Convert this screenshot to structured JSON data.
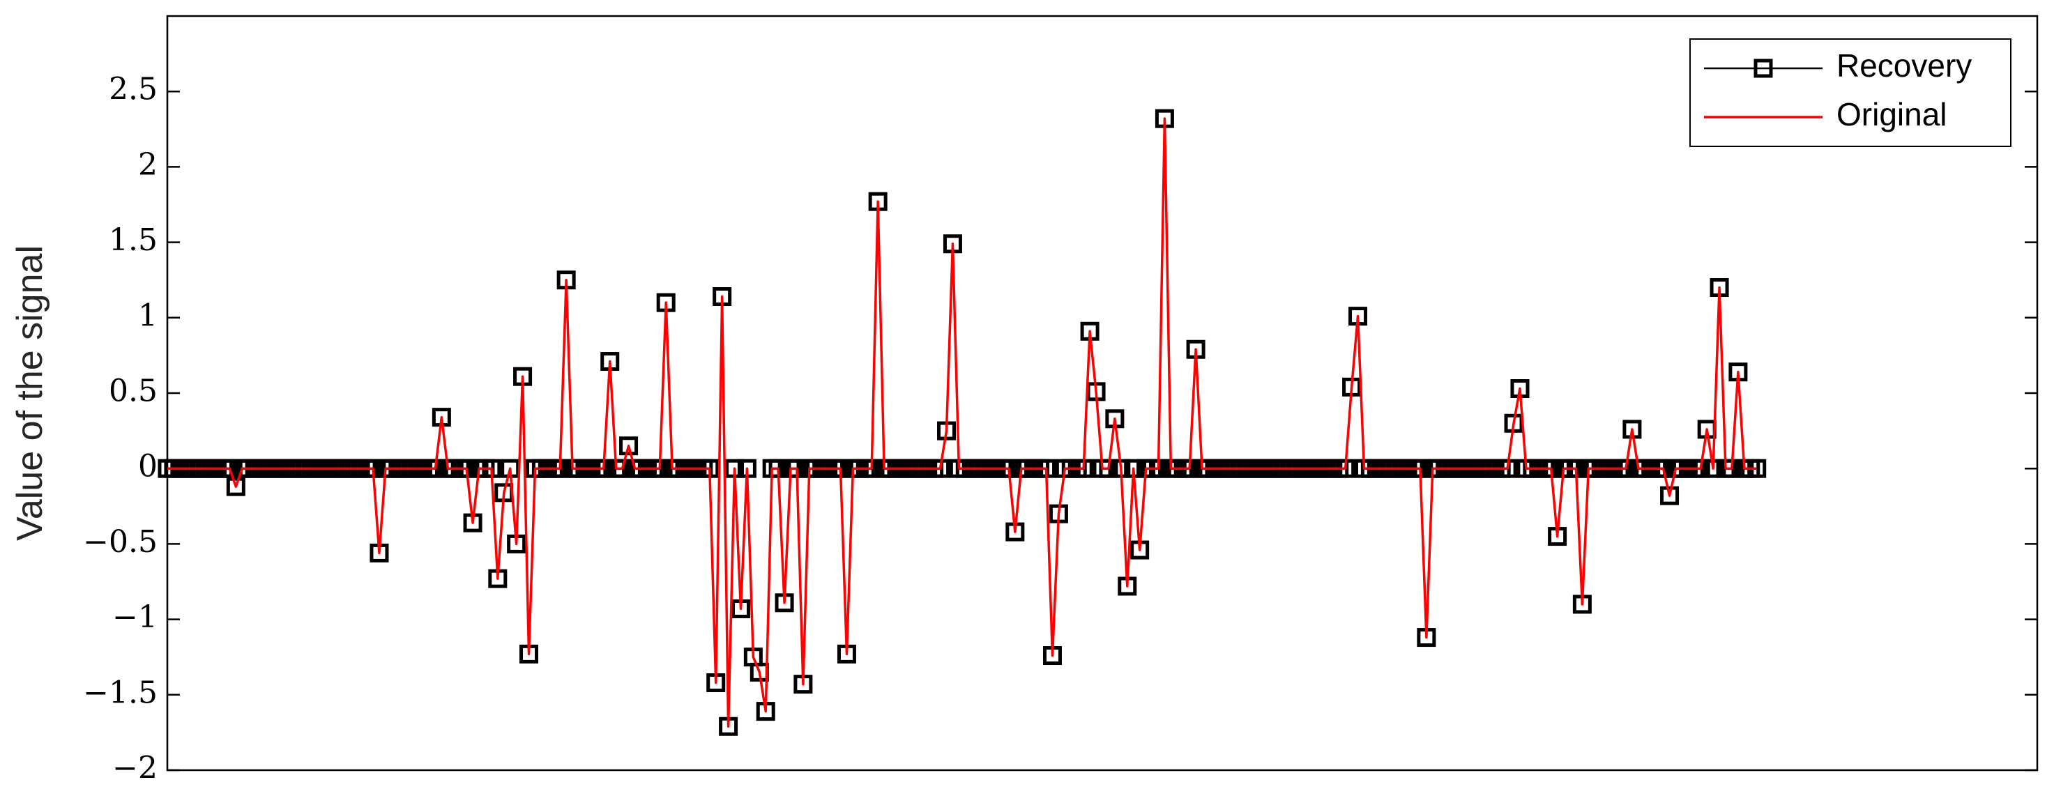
{
  "chart_data": {
    "type": "line",
    "ylabel": "Value of the signal",
    "xlim": [
      0,
      300
    ],
    "ylim": [
      -2,
      3
    ],
    "yticks": [
      {
        "value": -2,
        "label": "−2"
      },
      {
        "value": -1.5,
        "label": "−1.5"
      },
      {
        "value": -1,
        "label": "−1"
      },
      {
        "value": -0.5,
        "label": "−0.5"
      },
      0,
      0.5,
      1,
      1.5,
      2,
      2.5
    ],
    "legend": "top-right",
    "x": [
      0,
      1,
      2,
      3,
      4,
      5,
      6,
      7,
      8,
      9,
      10,
      11,
      12,
      13,
      14,
      15,
      16,
      17,
      18,
      19,
      20,
      21,
      22,
      23,
      24,
      25,
      26,
      27,
      28,
      29,
      30,
      31,
      32,
      33,
      34,
      35,
      36,
      37,
      38,
      39,
      40,
      41,
      42,
      43,
      44,
      45,
      46,
      47,
      48,
      49,
      50,
      51,
      52,
      53,
      54,
      55,
      56,
      57,
      58,
      59,
      60,
      61,
      62,
      63,
      64,
      65,
      66,
      67,
      68,
      69,
      70,
      71,
      72,
      73,
      74,
      75,
      76,
      77,
      78,
      79,
      80,
      81,
      82,
      83,
      84,
      85,
      86,
      87,
      88,
      89,
      90,
      91,
      92,
      93,
      94,
      95,
      96,
      97,
      98,
      99,
      100,
      101,
      102,
      103,
      104,
      105,
      106,
      107,
      108,
      109,
      110,
      111,
      112,
      113,
      114,
      115,
      116,
      117,
      118,
      119,
      120,
      121,
      122,
      123,
      124,
      125,
      126,
      127,
      128,
      129,
      130,
      131,
      132,
      133,
      134,
      135,
      136,
      137,
      138,
      139,
      140,
      141,
      142,
      143,
      144,
      145,
      146,
      147,
      148,
      149,
      150,
      151,
      152,
      153,
      154,
      155,
      156,
      157,
      158,
      159,
      160,
      161,
      162,
      163,
      164,
      165,
      166,
      167,
      168,
      169,
      170,
      171,
      172,
      173,
      174,
      175,
      176,
      177,
      178,
      179,
      180,
      181,
      182,
      183,
      184,
      185,
      186,
      187,
      188,
      189,
      190,
      191,
      192,
      193,
      194,
      195,
      196,
      197,
      198,
      199,
      200,
      201,
      202,
      203,
      204,
      205,
      206,
      207,
      208,
      209,
      210,
      211,
      212,
      213,
      214,
      215,
      216,
      217,
      218,
      219,
      220,
      221,
      222,
      223,
      224,
      225,
      226,
      227,
      228,
      229,
      230,
      231,
      232,
      233,
      234,
      235,
      236,
      237,
      238,
      239,
      240,
      241,
      242,
      243,
      244,
      245,
      246,
      247,
      248,
      249,
      250,
      251,
      252,
      253,
      254,
      255
    ],
    "series": [
      {
        "name": "Recovery",
        "color": "#000000",
        "marker": "square",
        "values": [
          0,
          0,
          0,
          0,
          0,
          0,
          0,
          0,
          0,
          0,
          0,
          -0.12,
          0,
          0,
          0,
          0,
          0,
          0,
          0,
          0,
          0,
          0,
          0,
          0,
          0,
          0,
          0,
          0,
          0,
          0,
          0,
          0,
          0,
          0,
          -0.56,
          0,
          0,
          0,
          0,
          0,
          0,
          0,
          0,
          0,
          0.34,
          0,
          0,
          0,
          0,
          -0.36,
          0,
          0,
          0,
          -0.73,
          -0.16,
          0,
          -0.5,
          0.61,
          -1.23,
          0,
          0,
          0,
          0,
          0,
          1.25,
          0,
          0,
          0,
          0,
          0,
          0,
          0.71,
          0,
          0,
          0.15,
          0,
          0,
          0,
          0,
          0,
          1.1,
          0,
          0,
          0,
          0,
          0,
          0,
          0,
          -1.42,
          1.14,
          -1.71,
          0,
          -0.93,
          0,
          -1.25,
          -1.35,
          -1.61,
          0,
          0,
          -0.89,
          0,
          0,
          -1.43,
          0,
          0,
          0,
          0,
          0,
          0,
          -1.23,
          0,
          0,
          0,
          0,
          1.77,
          0,
          0,
          0,
          0,
          0,
          0,
          0,
          0,
          0,
          0,
          0.25,
          1.49,
          0,
          0,
          0,
          0,
          0,
          0,
          0,
          0,
          0,
          -0.42,
          0,
          0,
          0,
          0,
          0,
          -1.24,
          -0.3,
          0,
          0,
          0,
          0,
          0.91,
          0.51,
          0,
          0,
          0.33,
          0,
          -0.78,
          0,
          -0.54,
          0,
          0,
          0,
          2.32,
          0,
          0,
          0,
          0,
          0.79,
          0,
          0,
          0,
          0,
          0,
          0,
          0,
          0,
          0,
          0,
          0,
          0,
          0,
          0,
          0,
          0,
          0,
          0,
          0,
          0,
          0,
          0,
          0,
          0,
          0.54,
          1.01,
          0,
          0,
          0,
          0,
          0,
          0,
          0,
          0,
          0,
          0,
          -1.12,
          0,
          0,
          0,
          0,
          0,
          0,
          0,
          0,
          0,
          0,
          0,
          0,
          0,
          0.3,
          0.53,
          0,
          0,
          0,
          0,
          0,
          -0.45,
          0,
          0,
          0,
          -0.9,
          0,
          0,
          0,
          0,
          0,
          0,
          0,
          0.26,
          0,
          0,
          0,
          0,
          0,
          -0.18,
          0,
          0,
          0,
          0,
          0,
          0.26,
          0,
          1.2,
          0,
          0,
          0.64,
          0,
          0,
          0
        ]
      },
      {
        "name": "Original",
        "color": "#ff0000",
        "values": [
          0,
          0,
          0,
          0,
          0,
          0,
          0,
          0,
          0,
          0,
          0,
          -0.12,
          0,
          0,
          0,
          0,
          0,
          0,
          0,
          0,
          0,
          0,
          0,
          0,
          0,
          0,
          0,
          0,
          0,
          0,
          0,
          0,
          0,
          0,
          -0.56,
          0,
          0,
          0,
          0,
          0,
          0,
          0,
          0,
          0,
          0.34,
          0,
          0,
          0,
          0,
          -0.36,
          0,
          0,
          0,
          -0.73,
          -0.16,
          0,
          -0.5,
          0.61,
          -1.23,
          0,
          0,
          0,
          0,
          0,
          1.25,
          0,
          0,
          0,
          0,
          0,
          0,
          0.71,
          0,
          0,
          0.15,
          0,
          0,
          0,
          0,
          0,
          1.1,
          0,
          0,
          0,
          0,
          0,
          0,
          0,
          -1.42,
          1.14,
          -1.71,
          0,
          -0.93,
          0,
          -1.25,
          -1.35,
          -1.61,
          0,
          0,
          -0.89,
          0,
          0,
          -1.43,
          0,
          0,
          0,
          0,
          0,
          0,
          -1.23,
          0,
          0,
          0,
          0,
          1.77,
          0,
          0,
          0,
          0,
          0,
          0,
          0,
          0,
          0,
          0,
          0.25,
          1.49,
          0,
          0,
          0,
          0,
          0,
          0,
          0,
          0,
          0,
          -0.42,
          0,
          0,
          0,
          0,
          0,
          -1.24,
          -0.3,
          0,
          0,
          0,
          0,
          0.91,
          0.51,
          0,
          0,
          0.33,
          0,
          -0.78,
          0,
          -0.54,
          0,
          0,
          0,
          2.32,
          0,
          0,
          0,
          0,
          0.79,
          0,
          0,
          0,
          0,
          0,
          0,
          0,
          0,
          0,
          0,
          0,
          0,
          0,
          0,
          0,
          0,
          0,
          0,
          0,
          0,
          0,
          0,
          0,
          0,
          0.54,
          1.01,
          0,
          0,
          0,
          0,
          0,
          0,
          0,
          0,
          0,
          0,
          -1.12,
          0,
          0,
          0,
          0,
          0,
          0,
          0,
          0,
          0,
          0,
          0,
          0,
          0,
          0.3,
          0.53,
          0,
          0,
          0,
          0,
          0,
          -0.45,
          0,
          0,
          0,
          -0.9,
          0,
          0,
          0,
          0,
          0,
          0,
          0,
          0.26,
          0,
          0,
          0,
          0,
          0,
          -0.18,
          0,
          0,
          0,
          0,
          0,
          0.26,
          0,
          1.2,
          0,
          0,
          0.64,
          0,
          0,
          0
        ]
      }
    ]
  }
}
